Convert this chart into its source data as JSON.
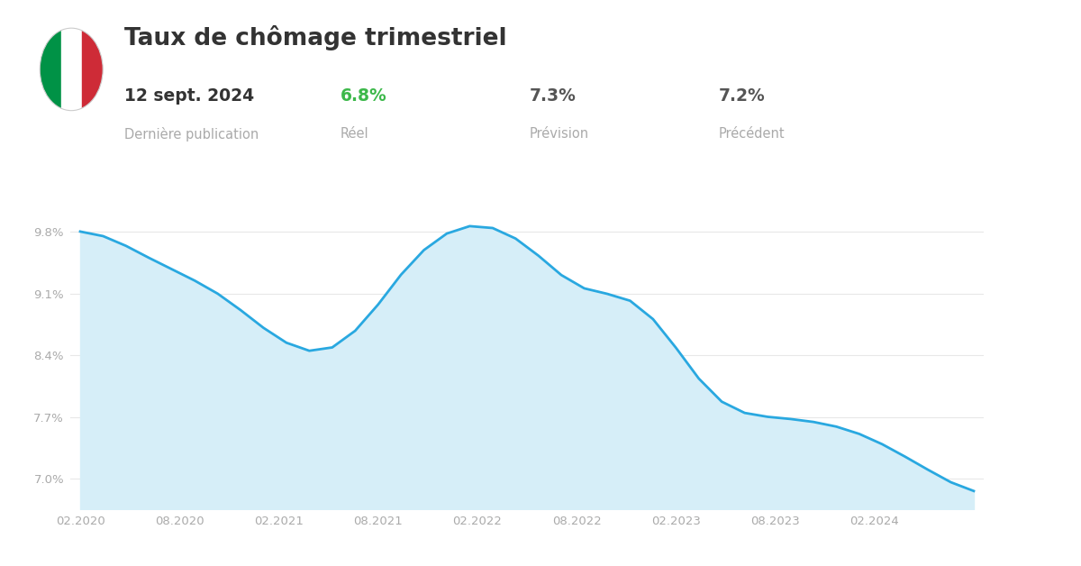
{
  "title": "Taux de chômage trimestriel",
  "date_label": "12 sept. 2024",
  "date_sublabel": "Dernière publication",
  "reel_value": "6.8%",
  "reel_sublabel": "Réel",
  "prevision_value": "7.3%",
  "prevision_sublabel": "Prévision",
  "precedent_value": "7.2%",
  "precedent_sublabel": "Précédent",
  "bg_color": "#ffffff",
  "line_color": "#29a8e0",
  "fill_color": "#d6eef8",
  "grid_color": "#e8e8e8",
  "axis_label_color": "#aaaaaa",
  "title_color": "#333333",
  "reel_color": "#3cb84a",
  "value_color": "#555555",
  "sublabel_color": "#aaaaaa",
  "yticks": [
    7.0,
    7.7,
    8.4,
    9.1,
    9.8
  ],
  "ytick_labels": [
    "7.0%",
    "7.7%",
    "8.4%",
    "9.1%",
    "9.8%"
  ],
  "xtick_labels": [
    "02.2020",
    "08.2020",
    "02.2021",
    "08.2021",
    "02.2022",
    "08.2022",
    "02.2023",
    "08.2023",
    "02.2024"
  ],
  "ylim": [
    6.65,
    10.25
  ],
  "y_values": [
    9.82,
    9.78,
    9.65,
    9.5,
    9.38,
    9.25,
    9.12,
    8.92,
    8.7,
    8.52,
    8.41,
    8.43,
    8.65,
    8.95,
    9.35,
    9.62,
    9.82,
    9.9,
    9.88,
    9.75,
    9.55,
    9.28,
    9.12,
    9.1,
    9.08,
    8.85,
    8.5,
    8.1,
    7.82,
    7.72,
    7.7,
    7.68,
    7.65,
    7.6,
    7.52,
    7.4,
    7.25,
    7.1,
    6.95,
    6.82
  ],
  "n_points": 40,
  "xtick_quarter_positions": [
    0,
    6,
    12,
    18,
    24,
    30,
    36,
    42,
    48
  ],
  "total_quarters": 18
}
